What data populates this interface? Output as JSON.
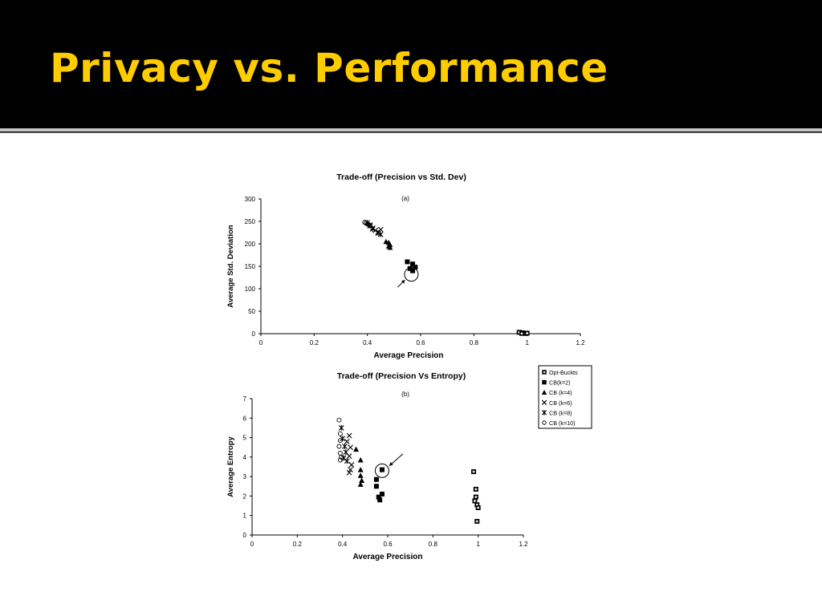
{
  "slide": {
    "title": "Privacy vs. Performance"
  },
  "chart_data": [
    {
      "type": "scatter",
      "title": "Trade-off (Precision vs Std. Dev)",
      "subtitle": "(a)",
      "xlabel": "Average Precision",
      "ylabel": "Average Std. Deviation",
      "xlim": [
        0,
        1.2
      ],
      "ylim": [
        0,
        300
      ],
      "xticks": [
        "0",
        "0.2",
        "0.4",
        "0.6",
        "0.8",
        "1",
        "1.2"
      ],
      "yticks": [
        "0",
        "50",
        "100",
        "150",
        "200",
        "250",
        "300"
      ],
      "grid": false,
      "series": [
        {
          "name": "Opt-Buckts",
          "marker": "plus-square",
          "points": [
            [
              0.97,
              3
            ],
            [
              0.98,
              2
            ],
            [
              0.985,
              1.5
            ],
            [
              0.99,
              1
            ],
            [
              0.995,
              0.5
            ],
            [
              1.0,
              1
            ],
            [
              0.98,
              0.5
            ]
          ]
        },
        {
          "name": "CB(k=2)",
          "marker": "square",
          "points": [
            [
              0.55,
              160
            ],
            [
              0.57,
              155
            ],
            [
              0.58,
              148
            ],
            [
              0.56,
              145
            ],
            [
              0.57,
              140
            ]
          ]
        },
        {
          "name": "CB (k=4)",
          "marker": "triangle",
          "points": [
            [
              0.47,
              205
            ],
            [
              0.48,
              203
            ],
            [
              0.485,
              198
            ],
            [
              0.48,
              195
            ],
            [
              0.485,
              192
            ]
          ]
        },
        {
          "name": "CB (k=6)",
          "marker": "x",
          "points": [
            [
              0.41,
              242
            ],
            [
              0.42,
              235
            ],
            [
              0.43,
              230
            ],
            [
              0.44,
              226
            ],
            [
              0.45,
              232
            ]
          ]
        },
        {
          "name": "CB (k=8)",
          "marker": "asterisk",
          "points": [
            [
              0.4,
              247
            ],
            [
              0.41,
              240
            ],
            [
              0.42,
              233
            ],
            [
              0.44,
              224
            ],
            [
              0.45,
              221
            ]
          ]
        },
        {
          "name": "CB (k=10)",
          "marker": "circle",
          "points": [
            [
              0.39,
              248
            ],
            [
              0.395,
              246
            ],
            [
              0.4,
              244
            ],
            [
              0.405,
              243
            ],
            [
              0.41,
              241
            ]
          ]
        }
      ],
      "annotations": [
        {
          "type": "circle-arrow",
          "point": [
            0.565,
            132
          ]
        }
      ]
    },
    {
      "type": "scatter",
      "title": "Trade-off (Precision Vs Entropy)",
      "subtitle": "(b)",
      "xlabel": "Average Precision",
      "ylabel": "Average Entropy",
      "xlim": [
        0,
        1.2
      ],
      "ylim": [
        0,
        7
      ],
      "xticks": [
        "0",
        "0.2",
        "0.4",
        "0.6",
        "0.8",
        "1",
        "1.2"
      ],
      "yticks": [
        "0",
        "1",
        "2",
        "3",
        "4",
        "5",
        "6",
        "7"
      ],
      "grid": false,
      "legend": "right",
      "series": [
        {
          "name": "Opt-Buckts",
          "marker": "plus-square",
          "points": [
            [
              0.98,
              3.25
            ],
            [
              0.99,
              2.35
            ],
            [
              0.99,
              1.95
            ],
            [
              0.985,
              1.75
            ],
            [
              0.995,
              1.55
            ],
            [
              1.0,
              1.4
            ],
            [
              0.995,
              0.7
            ]
          ]
        },
        {
          "name": "CB(k=2)",
          "marker": "square",
          "points": [
            [
              0.55,
              2.85
            ],
            [
              0.55,
              2.5
            ],
            [
              0.575,
              2.1
            ],
            [
              0.56,
              1.95
            ],
            [
              0.565,
              1.8
            ],
            [
              0.575,
              3.35
            ]
          ]
        },
        {
          "name": "CB (k=4)",
          "marker": "triangle",
          "points": [
            [
              0.46,
              4.4
            ],
            [
              0.48,
              3.85
            ],
            [
              0.48,
              3.35
            ],
            [
              0.48,
              3.05
            ],
            [
              0.485,
              2.8
            ],
            [
              0.48,
              2.6
            ]
          ]
        },
        {
          "name": "CB (k=6)",
          "marker": "x",
          "points": [
            [
              0.43,
              5.1
            ],
            [
              0.42,
              4.8
            ],
            [
              0.435,
              4.5
            ],
            [
              0.43,
              4.05
            ],
            [
              0.44,
              3.6
            ],
            [
              0.435,
              3.35
            ],
            [
              0.43,
              3.2
            ]
          ]
        },
        {
          "name": "CB (k=8)",
          "marker": "asterisk",
          "points": [
            [
              0.395,
              5.5
            ],
            [
              0.4,
              4.95
            ],
            [
              0.41,
              4.55
            ],
            [
              0.415,
              4.25
            ],
            [
              0.405,
              3.95
            ],
            [
              0.42,
              3.8
            ]
          ]
        },
        {
          "name": "CB (k=10)",
          "marker": "circle",
          "points": [
            [
              0.385,
              5.9
            ],
            [
              0.39,
              5.2
            ],
            [
              0.39,
              4.85
            ],
            [
              0.385,
              4.55
            ],
            [
              0.39,
              4.2
            ],
            [
              0.395,
              4.0
            ],
            [
              0.39,
              3.85
            ]
          ]
        }
      ],
      "annotations": [
        {
          "type": "circle-arrow",
          "point": [
            0.575,
            3.3
          ]
        }
      ]
    }
  ]
}
